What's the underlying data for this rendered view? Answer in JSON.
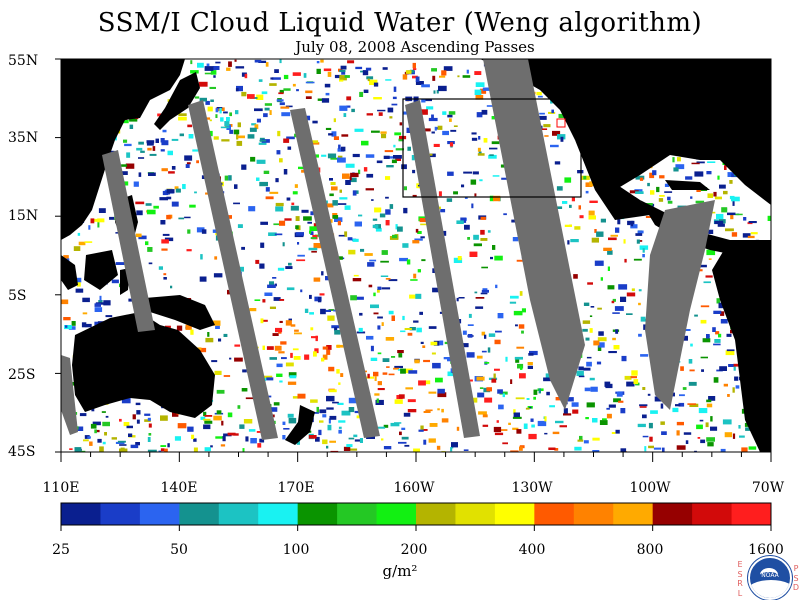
{
  "title": "SSM/I Cloud Liquid Water (Weng algorithm)",
  "subtitle": "July 08, 2008  Ascending Passes",
  "latitude_labels": [
    "55N",
    "35N",
    "15N",
    "5S",
    "25S",
    "45S"
  ],
  "longitude_labels": [
    "110E",
    "140E",
    "170E",
    "160W",
    "130W",
    "100W",
    "70W"
  ],
  "colorbar": {
    "tick_labels": [
      "25",
      "50",
      "100",
      "200",
      "400",
      "800",
      "1600"
    ],
    "colors": [
      "#0a1f8f",
      "#1a3dc8",
      "#2b64f0",
      "#14928f",
      "#1cc3c3",
      "#19f2f2",
      "#0a9400",
      "#24c824",
      "#12f012",
      "#b4b400",
      "#e1e100",
      "#ffff00",
      "#ff5a00",
      "#ff8200",
      "#ffaa00",
      "#960000",
      "#d20a0a",
      "#ff1e1e"
    ],
    "units": "g/m²"
  },
  "colors": {
    "land": "#000000",
    "no_data": "#6e6e6e",
    "background": "#ffffff",
    "marker": "#ff0000"
  },
  "logo": {
    "left_text": "ESRL",
    "right_text": "PSD",
    "emblem": "NOAA"
  }
}
